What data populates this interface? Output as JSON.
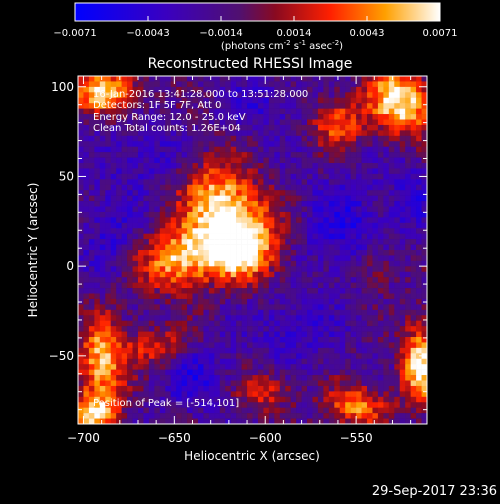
{
  "chart_data": {
    "type": "heatmap",
    "title": "Reconstructed RHESSI Image",
    "xlabel": "Heliocentric X (arcsec)",
    "ylabel": "Heliocentric Y (arcsec)",
    "xlim": [
      -703,
      -511
    ],
    "ylim": [
      -88,
      106
    ],
    "x_ticks": [
      -700,
      -650,
      -600,
      -550
    ],
    "y_ticks": [
      -50,
      0,
      50,
      100
    ],
    "colorbar": {
      "range": [
        -0.0071,
        0.0071
      ],
      "ticks": [
        "-0.0071",
        "-0.0043",
        "-0.0014",
        "0.0014",
        "0.0043",
        "0.0071"
      ],
      "label_prefix": "(photons cm",
      "label_exp1": "-2",
      "label_mid1": " s",
      "label_exp2": "-1",
      "label_mid2": " asec",
      "label_exp3": "-2",
      "label_suffix": ")"
    },
    "annotations": {
      "time_range": "16-Jan-2016 13:41:28.000 to 13:51:28.000",
      "detectors": "Detectors: 1F 5F 7F, Att 0",
      "energy": "Energy Range: 12.0 - 25.0 keV",
      "method": "Clean    Total counts: 1.26E+04",
      "peak": "Position of Peak = [-514,101]"
    },
    "sources": [
      {
        "x": -620,
        "y": 30,
        "sx": 22,
        "sy": 14,
        "amp": 1.0,
        "rot": -0.9
      },
      {
        "x": -645,
        "y": 5,
        "sx": 16,
        "sy": 12,
        "amp": 0.9,
        "rot": 0.3
      },
      {
        "x": -615,
        "y": 8,
        "sx": 12,
        "sy": 10,
        "amp": 0.75,
        "rot": 0.0
      },
      {
        "x": -525,
        "y": 92,
        "sx": 12,
        "sy": 14,
        "amp": 1.0,
        "rot": 0.5
      },
      {
        "x": -560,
        "y": 80,
        "sx": 10,
        "sy": 10,
        "amp": 0.6,
        "rot": 0.0
      },
      {
        "x": -688,
        "y": 97,
        "sx": 14,
        "sy": 8,
        "amp": 0.85,
        "rot": 0.0
      },
      {
        "x": -690,
        "y": -55,
        "sx": 9,
        "sy": 18,
        "amp": 0.85,
        "rot": 0.0
      },
      {
        "x": -695,
        "y": -82,
        "sx": 10,
        "sy": 7,
        "amp": 0.7,
        "rot": 0.0
      },
      {
        "x": -515,
        "y": -55,
        "sx": 7,
        "sy": 16,
        "amp": 0.95,
        "rot": 0.0
      },
      {
        "x": -550,
        "y": -78,
        "sx": 12,
        "sy": 8,
        "amp": 0.7,
        "rot": 0.0
      },
      {
        "x": -600,
        "y": -70,
        "sx": 10,
        "sy": 7,
        "amp": 0.5,
        "rot": 0.0
      },
      {
        "x": -660,
        "y": -45,
        "sx": 12,
        "sy": 8,
        "amp": 0.5,
        "rot": 0.0
      },
      {
        "x": -540,
        "y": 0,
        "sx": 8,
        "sy": 10,
        "amp": 0.35,
        "rot": 0.0
      }
    ],
    "negative_regions": [
      {
        "x": -555,
        "y": 20,
        "sx": 16,
        "sy": 20,
        "amp": 0.6
      },
      {
        "x": -660,
        "y": 60,
        "sx": 15,
        "sy": 12,
        "amp": 0.5
      },
      {
        "x": -640,
        "y": -60,
        "sx": 14,
        "sy": 12,
        "amp": 0.55
      },
      {
        "x": -585,
        "y": -35,
        "sx": 14,
        "sy": 12,
        "amp": 0.5
      },
      {
        "x": -685,
        "y": 20,
        "sx": 10,
        "sy": 18,
        "amp": 0.45
      },
      {
        "x": -520,
        "y": 40,
        "sx": 8,
        "sy": 14,
        "amp": 0.45
      },
      {
        "x": -600,
        "y": 90,
        "sx": 14,
        "sy": 10,
        "amp": 0.4
      }
    ]
  },
  "footer": {
    "timestamp": "29-Sep-2017 23:36"
  }
}
